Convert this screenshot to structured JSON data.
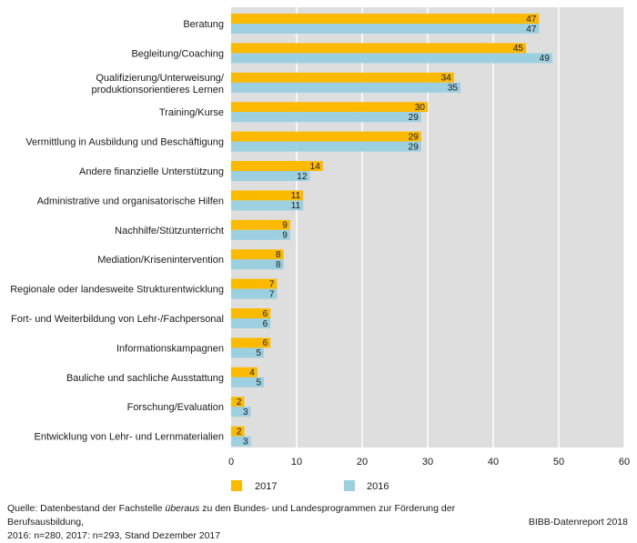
{
  "chart_data": {
    "type": "bar",
    "orientation": "horizontal",
    "categories": [
      "Beratung",
      "Begleitung/Coaching",
      "Qualifizierung/Unterweisung/ produktionsorientieres Lernen",
      "Training/Kurse",
      "Vermittlung in Ausbildung und Beschäftigung",
      "Andere finanzielle Unterstützung",
      "Administrative und organisatorische Hilfen",
      "Nachhilfe/Stützunterricht",
      "Mediation/Krisenintervention",
      "Regionale oder landesweite Strukturentwicklung",
      "Fort- und Weiterbildung von Lehr-/Fachpersonal",
      "Informationskampagnen",
      "Bauliche und sachliche Ausstattung",
      "Forschung/Evaluation",
      "Entwicklung von Lehr- und Lernmaterialien"
    ],
    "series": [
      {
        "name": "2017",
        "color": "#fbba00",
        "values": [
          47,
          45,
          34,
          30,
          29,
          14,
          11,
          9,
          8,
          7,
          6,
          6,
          4,
          2,
          2
        ]
      },
      {
        "name": "2016",
        "color": "#9ccfe0",
        "values": [
          47,
          49,
          35,
          29,
          29,
          12,
          11,
          9,
          8,
          7,
          6,
          5,
          5,
          3,
          3
        ]
      }
    ],
    "xlim": [
      0,
      60
    ],
    "xticks": [
      0,
      10,
      20,
      30,
      40,
      50,
      60
    ],
    "grid": true,
    "legend_position": "bottom"
  },
  "source": {
    "prefix": "Quelle: Datenbestand der Fachstelle ",
    "italic": "überaus",
    "suffix": " zu den Bundes- und Landesprogrammen zur Förderung der Berufsausbildung,",
    "line2": "2016: n=280, 2017: n=293, Stand Dezember 2017"
  },
  "credit": "BIBB-Datenreport 2018",
  "colors": {
    "plot_bg": "#dedede",
    "grid": "#ffffff"
  }
}
